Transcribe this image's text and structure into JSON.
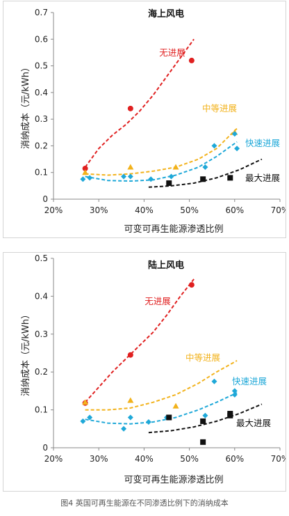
{
  "caption": "图4 英国可再生能源在不同渗透比例下的消纳成本",
  "chart_data": [
    {
      "type": "scatter",
      "title": "海上风电",
      "xlabel": "可变可再生能源渗透比例",
      "ylabel": "消纳成本（元/kWh）",
      "xlim": [
        0.2,
        0.7
      ],
      "ylim": [
        0,
        0.7
      ],
      "xticks": [
        "20%",
        "30%",
        "40%",
        "50%",
        "60%",
        "70%"
      ],
      "yticks": [
        "0",
        "0.1",
        "0.2",
        "0.3",
        "0.4",
        "0.5",
        "0.6",
        "0.7"
      ],
      "grid": false,
      "series": [
        {
          "name": "无进展",
          "color": "#e02020",
          "marker": "circle",
          "x": [
            0.27,
            0.37,
            0.505
          ],
          "y": [
            0.115,
            0.34,
            0.52
          ],
          "trend_x": [
            0.27,
            0.3,
            0.33,
            0.36,
            0.39,
            0.42,
            0.45,
            0.48,
            0.51
          ],
          "trend_y": [
            0.12,
            0.19,
            0.24,
            0.28,
            0.33,
            0.39,
            0.46,
            0.53,
            0.6
          ]
        },
        {
          "name": "中等进展",
          "color": "#f2b21b",
          "marker": "triangle",
          "x": [
            0.27,
            0.37,
            0.47,
            0.6
          ],
          "y": [
            0.1,
            0.12,
            0.12,
            0.25
          ],
          "trend_x": [
            0.27,
            0.32,
            0.37,
            0.42,
            0.47,
            0.52,
            0.56,
            0.605
          ],
          "trend_y": [
            0.095,
            0.09,
            0.095,
            0.105,
            0.12,
            0.15,
            0.19,
            0.265
          ]
        },
        {
          "name": "快速进展",
          "color": "#1ea8d8",
          "marker": "diamond",
          "x": [
            0.265,
            0.28,
            0.355,
            0.37,
            0.415,
            0.46,
            0.535,
            0.555,
            0.6,
            0.605
          ],
          "y": [
            0.075,
            0.08,
            0.085,
            0.085,
            0.075,
            0.085,
            0.12,
            0.2,
            0.245,
            0.19
          ],
          "trend_x": [
            0.27,
            0.32,
            0.37,
            0.42,
            0.47,
            0.52,
            0.56,
            0.605
          ],
          "trend_y": [
            0.085,
            0.07,
            0.068,
            0.072,
            0.09,
            0.12,
            0.16,
            0.215
          ]
        },
        {
          "name": "最大进展",
          "color": "#111111",
          "marker": "square",
          "x": [
            0.455,
            0.53,
            0.59
          ],
          "y": [
            0.06,
            0.075,
            0.08
          ],
          "trend_x": [
            0.41,
            0.46,
            0.51,
            0.56,
            0.61,
            0.66
          ],
          "trend_y": [
            0.045,
            0.05,
            0.06,
            0.08,
            0.11,
            0.15
          ]
        }
      ]
    },
    {
      "type": "scatter",
      "title": "陆上风电",
      "xlabel": "可变可再生能源渗透比例",
      "ylabel": "消纳成本（元/kWh）",
      "xlim": [
        0.2,
        0.7
      ],
      "ylim": [
        0,
        0.5
      ],
      "xticks": [
        "20%",
        "30%",
        "40%",
        "50%",
        "60%",
        "70%"
      ],
      "yticks": [
        "0",
        "0.1",
        "0.2",
        "0.3",
        "0.4",
        "0.5"
      ],
      "grid": false,
      "series": [
        {
          "name": "无进展",
          "color": "#e02020",
          "marker": "circle",
          "x": [
            0.27,
            0.37,
            0.505
          ],
          "y": [
            0.118,
            0.245,
            0.43
          ],
          "trend_x": [
            0.27,
            0.3,
            0.33,
            0.36,
            0.39,
            0.42,
            0.45,
            0.48,
            0.51
          ],
          "trend_y": [
            0.12,
            0.16,
            0.2,
            0.235,
            0.27,
            0.305,
            0.35,
            0.4,
            0.445
          ]
        },
        {
          "name": "中等进展",
          "color": "#f2b21b",
          "marker": "triangle",
          "x": [
            0.27,
            0.37,
            0.47
          ],
          "y": [
            0.12,
            0.125,
            0.11
          ],
          "trend_x": [
            0.27,
            0.32,
            0.37,
            0.42,
            0.47,
            0.52,
            0.56,
            0.605
          ],
          "trend_y": [
            0.1,
            0.1,
            0.105,
            0.12,
            0.14,
            0.17,
            0.2,
            0.23
          ]
        },
        {
          "name": "快速进展",
          "color": "#1ea8d8",
          "marker": "diamond",
          "x": [
            0.265,
            0.28,
            0.355,
            0.37,
            0.41,
            0.45,
            0.535,
            0.555,
            0.6,
            0.6
          ],
          "y": [
            0.07,
            0.08,
            0.05,
            0.08,
            0.068,
            0.08,
            0.085,
            0.175,
            0.15,
            0.14
          ],
          "trend_x": [
            0.27,
            0.32,
            0.37,
            0.42,
            0.47,
            0.52,
            0.56,
            0.605
          ],
          "trend_y": [
            0.075,
            0.065,
            0.063,
            0.068,
            0.08,
            0.1,
            0.12,
            0.145
          ]
        },
        {
          "name": "最大进展",
          "color": "#111111",
          "marker": "square",
          "x": [
            0.455,
            0.53,
            0.53,
            0.59,
            0.59
          ],
          "y": [
            0.08,
            0.07,
            0.015,
            0.09,
            0.085
          ],
          "trend_x": [
            0.41,
            0.46,
            0.51,
            0.56,
            0.61,
            0.66
          ],
          "trend_y": [
            0.04,
            0.045,
            0.055,
            0.07,
            0.09,
            0.115
          ]
        }
      ]
    }
  ]
}
